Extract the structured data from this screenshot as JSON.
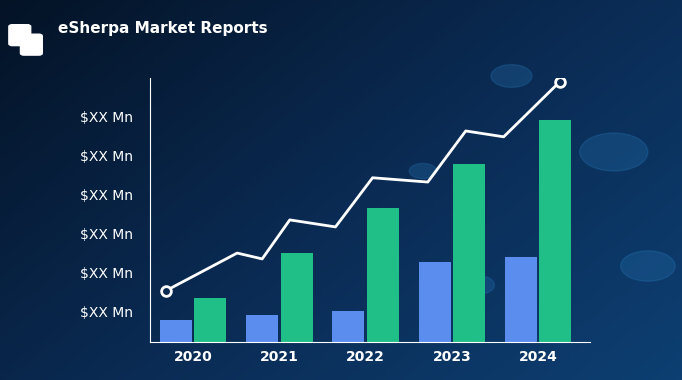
{
  "brand": "eSherpa Market Reports",
  "chart_data": {
    "type": "bar",
    "categories": [
      "2020",
      "2021",
      "2022",
      "2023",
      "2024"
    ],
    "series": [
      {
        "type": "bar",
        "color": "#5b8def",
        "values": [
          0.79,
          0.92,
          1.03,
          2.28,
          2.41
        ]
      },
      {
        "type": "bar",
        "color": "#1fbf87",
        "values": [
          1.36,
          2.51,
          3.67,
          4.79,
          5.92
        ]
      },
      {
        "type": "line",
        "color": "#ffffff",
        "marker": "o",
        "line_style": "solid",
        "x": [
          -0.32,
          0.51,
          0.8,
          1.12,
          1.65,
          2.08,
          2.72,
          3.16,
          3.6,
          4.25
        ],
        "values": [
          1.54,
          2.51,
          2.36,
          3.36,
          3.18,
          4.44,
          4.33,
          5.64,
          5.49,
          6.9
        ]
      }
    ],
    "ylim": [
      0.23,
      7.0
    ],
    "yticks": [
      {
        "value": 1,
        "label": "$XX Mn"
      },
      {
        "value": 2,
        "label": "$XX Mn"
      },
      {
        "value": 3,
        "label": "$XX Mn"
      },
      {
        "value": 4,
        "label": "$XX Mn"
      },
      {
        "value": 5,
        "label": "$XX Mn"
      },
      {
        "value": 6,
        "label": "$XX Mn"
      }
    ],
    "grid": false
  }
}
